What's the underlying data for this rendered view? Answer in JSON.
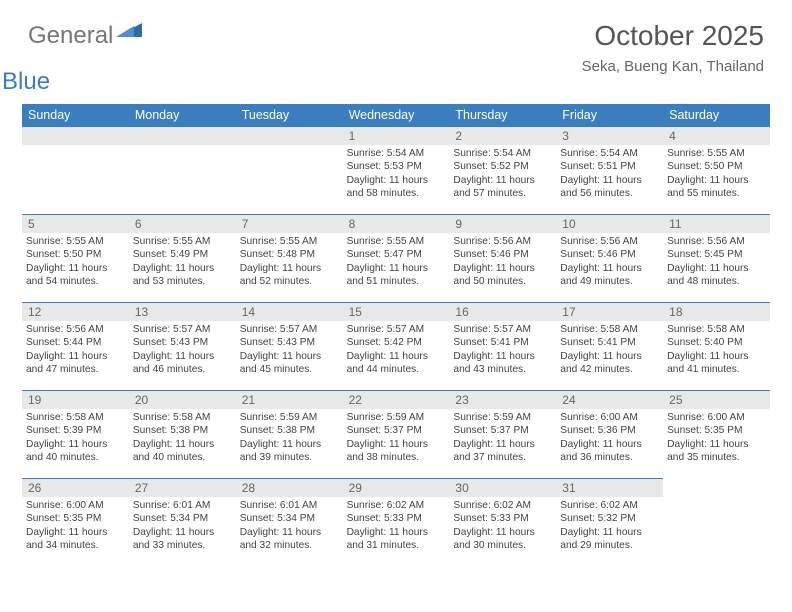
{
  "brand": {
    "part1": "General",
    "part2": "Blue"
  },
  "title": "October 2025",
  "location": "Seka, Bueng Kan, Thailand",
  "colors": {
    "header_bg": "#3a7ebf",
    "header_text": "#ffffff",
    "daynum_bg": "#e8e8e8",
    "daynum_text": "#666666",
    "cell_border": "#3a7ebf",
    "body_text": "#444444",
    "title_text": "#555555",
    "brand_gray": "#777777",
    "brand_blue": "#3a7ebf",
    "page_bg": "#ffffff"
  },
  "typography": {
    "title_fontsize": 28,
    "location_fontsize": 15,
    "dayhead_fontsize": 12.5,
    "daynum_fontsize": 12,
    "info_fontsize": 10.2,
    "font_family": "Arial"
  },
  "layout": {
    "columns": 7,
    "rows": 5,
    "cell_min_height": 88
  },
  "day_headers": [
    "Sunday",
    "Monday",
    "Tuesday",
    "Wednesday",
    "Thursday",
    "Friday",
    "Saturday"
  ],
  "lead_blanks": 3,
  "days": [
    {
      "n": "1",
      "sr": "5:54 AM",
      "ss": "5:53 PM",
      "dl": "11 hours and 58 minutes."
    },
    {
      "n": "2",
      "sr": "5:54 AM",
      "ss": "5:52 PM",
      "dl": "11 hours and 57 minutes."
    },
    {
      "n": "3",
      "sr": "5:54 AM",
      "ss": "5:51 PM",
      "dl": "11 hours and 56 minutes."
    },
    {
      "n": "4",
      "sr": "5:55 AM",
      "ss": "5:50 PM",
      "dl": "11 hours and 55 minutes."
    },
    {
      "n": "5",
      "sr": "5:55 AM",
      "ss": "5:50 PM",
      "dl": "11 hours and 54 minutes."
    },
    {
      "n": "6",
      "sr": "5:55 AM",
      "ss": "5:49 PM",
      "dl": "11 hours and 53 minutes."
    },
    {
      "n": "7",
      "sr": "5:55 AM",
      "ss": "5:48 PM",
      "dl": "11 hours and 52 minutes."
    },
    {
      "n": "8",
      "sr": "5:55 AM",
      "ss": "5:47 PM",
      "dl": "11 hours and 51 minutes."
    },
    {
      "n": "9",
      "sr": "5:56 AM",
      "ss": "5:46 PM",
      "dl": "11 hours and 50 minutes."
    },
    {
      "n": "10",
      "sr": "5:56 AM",
      "ss": "5:46 PM",
      "dl": "11 hours and 49 minutes."
    },
    {
      "n": "11",
      "sr": "5:56 AM",
      "ss": "5:45 PM",
      "dl": "11 hours and 48 minutes."
    },
    {
      "n": "12",
      "sr": "5:56 AM",
      "ss": "5:44 PM",
      "dl": "11 hours and 47 minutes."
    },
    {
      "n": "13",
      "sr": "5:57 AM",
      "ss": "5:43 PM",
      "dl": "11 hours and 46 minutes."
    },
    {
      "n": "14",
      "sr": "5:57 AM",
      "ss": "5:43 PM",
      "dl": "11 hours and 45 minutes."
    },
    {
      "n": "15",
      "sr": "5:57 AM",
      "ss": "5:42 PM",
      "dl": "11 hours and 44 minutes."
    },
    {
      "n": "16",
      "sr": "5:57 AM",
      "ss": "5:41 PM",
      "dl": "11 hours and 43 minutes."
    },
    {
      "n": "17",
      "sr": "5:58 AM",
      "ss": "5:41 PM",
      "dl": "11 hours and 42 minutes."
    },
    {
      "n": "18",
      "sr": "5:58 AM",
      "ss": "5:40 PM",
      "dl": "11 hours and 41 minutes."
    },
    {
      "n": "19",
      "sr": "5:58 AM",
      "ss": "5:39 PM",
      "dl": "11 hours and 40 minutes."
    },
    {
      "n": "20",
      "sr": "5:58 AM",
      "ss": "5:38 PM",
      "dl": "11 hours and 40 minutes."
    },
    {
      "n": "21",
      "sr": "5:59 AM",
      "ss": "5:38 PM",
      "dl": "11 hours and 39 minutes."
    },
    {
      "n": "22",
      "sr": "5:59 AM",
      "ss": "5:37 PM",
      "dl": "11 hours and 38 minutes."
    },
    {
      "n": "23",
      "sr": "5:59 AM",
      "ss": "5:37 PM",
      "dl": "11 hours and 37 minutes."
    },
    {
      "n": "24",
      "sr": "6:00 AM",
      "ss": "5:36 PM",
      "dl": "11 hours and 36 minutes."
    },
    {
      "n": "25",
      "sr": "6:00 AM",
      "ss": "5:35 PM",
      "dl": "11 hours and 35 minutes."
    },
    {
      "n": "26",
      "sr": "6:00 AM",
      "ss": "5:35 PM",
      "dl": "11 hours and 34 minutes."
    },
    {
      "n": "27",
      "sr": "6:01 AM",
      "ss": "5:34 PM",
      "dl": "11 hours and 33 minutes."
    },
    {
      "n": "28",
      "sr": "6:01 AM",
      "ss": "5:34 PM",
      "dl": "11 hours and 32 minutes."
    },
    {
      "n": "29",
      "sr": "6:02 AM",
      "ss": "5:33 PM",
      "dl": "11 hours and 31 minutes."
    },
    {
      "n": "30",
      "sr": "6:02 AM",
      "ss": "5:33 PM",
      "dl": "11 hours and 30 minutes."
    },
    {
      "n": "31",
      "sr": "6:02 AM",
      "ss": "5:32 PM",
      "dl": "11 hours and 29 minutes."
    }
  ],
  "labels": {
    "sunrise": "Sunrise:",
    "sunset": "Sunset:",
    "daylight": "Daylight:"
  }
}
